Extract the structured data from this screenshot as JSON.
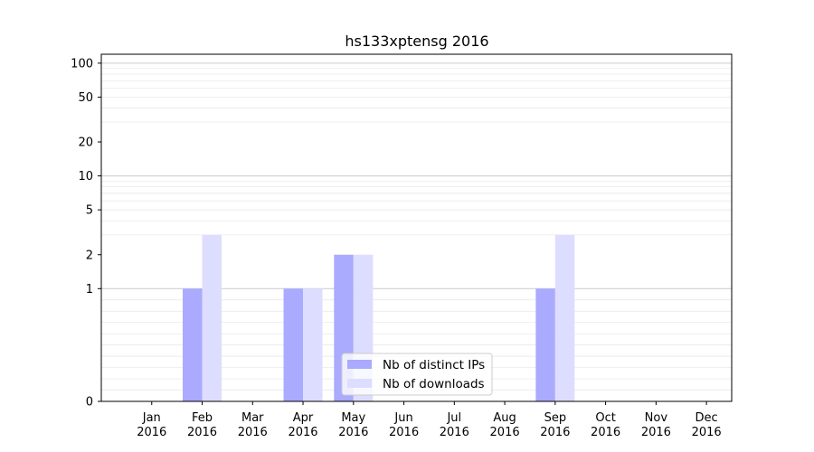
{
  "chart_data": {
    "type": "bar",
    "title": "hs133xptensg 2016",
    "xlabel": "",
    "ylabel": "",
    "yscale": "symlog",
    "ylim": [
      0,
      120
    ],
    "yticks": [
      0,
      1,
      2,
      5,
      10,
      20,
      50,
      100
    ],
    "ytick_labels": [
      "0",
      "1",
      "2",
      "5",
      "10",
      "20",
      "50",
      "100"
    ],
    "grid": "horizontal",
    "legend_position": "bottom-center",
    "categories": [
      {
        "month": "Jan",
        "year": "2016"
      },
      {
        "month": "Feb",
        "year": "2016"
      },
      {
        "month": "Mar",
        "year": "2016"
      },
      {
        "month": "Apr",
        "year": "2016"
      },
      {
        "month": "May",
        "year": "2016"
      },
      {
        "month": "Jun",
        "year": "2016"
      },
      {
        "month": "Jul",
        "year": "2016"
      },
      {
        "month": "Aug",
        "year": "2016"
      },
      {
        "month": "Sep",
        "year": "2016"
      },
      {
        "month": "Oct",
        "year": "2016"
      },
      {
        "month": "Nov",
        "year": "2016"
      },
      {
        "month": "Dec",
        "year": "2016"
      }
    ],
    "series": [
      {
        "name": "Nb of distinct IPs",
        "color": "#aaaaff",
        "values": [
          0,
          1,
          0,
          1,
          2,
          0,
          0,
          0,
          1,
          0,
          0,
          0
        ]
      },
      {
        "name": "Nb of downloads",
        "color": "#ddddff",
        "values": [
          0,
          3,
          0,
          1,
          2,
          0,
          0,
          0,
          3,
          0,
          0,
          0
        ]
      }
    ]
  }
}
